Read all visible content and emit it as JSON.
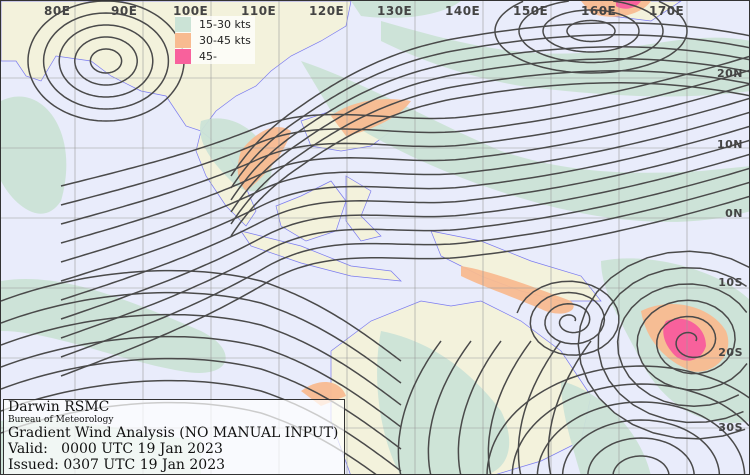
{
  "map": {
    "longitude_labels": [
      "80E",
      "90E",
      "100E",
      "110E",
      "120E",
      "130E",
      "140E",
      "150E",
      "160E",
      "170E"
    ],
    "latitude_labels": [
      "20N",
      "10N",
      "0N",
      "10S",
      "20S",
      "30S"
    ],
    "colors": {
      "ocean": "#e9ecfb",
      "land": "#f3f2dc",
      "coastline": "#7b7bf0",
      "streamline": "#4a4a4a",
      "grid": "#9a9a9a"
    }
  },
  "legend": {
    "items": [
      {
        "label": "15-30 kts",
        "color": "#cbe3d6"
      },
      {
        "label": "30-45 kts",
        "color": "#f8bb90"
      },
      {
        "label": "45-",
        "color": "#f8619c"
      }
    ]
  },
  "info": {
    "center": "Darwin RSMC",
    "agency": "Bureau of Meteorology",
    "product": "Gradient Wind Analysis (NO MANUAL INPUT)",
    "valid": "Valid:   0000 UTC 19 Jan 2023",
    "issued": "Issued: 0307 UTC 19 Jan 2023"
  }
}
